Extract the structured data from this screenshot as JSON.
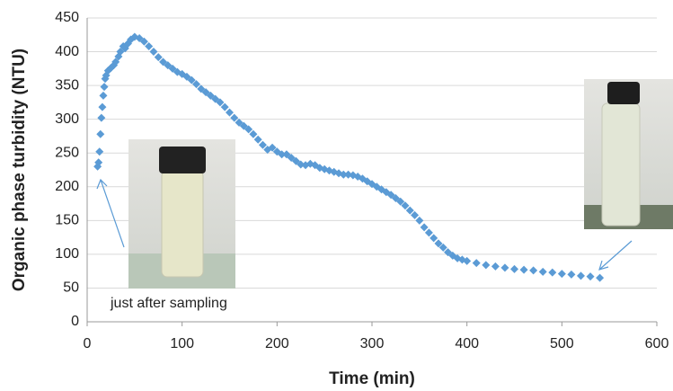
{
  "chart_data": {
    "type": "scatter",
    "x_label": "Time (min)",
    "y_label": "Organic phase turbidity (NTU)",
    "annotation": "just after sampling",
    "xlim": [
      0,
      600
    ],
    "xticks": [
      0,
      100,
      200,
      300,
      400,
      500,
      600
    ],
    "ylim": [
      0,
      450
    ],
    "yticks": [
      0,
      50,
      100,
      150,
      200,
      250,
      300,
      350,
      400,
      450
    ],
    "grid": true,
    "x": [
      11,
      12,
      13,
      14,
      15,
      16,
      17,
      18,
      19,
      20,
      22,
      25,
      28,
      30,
      33,
      35,
      38,
      40,
      43,
      46,
      50,
      55,
      60,
      65,
      70,
      75,
      80,
      85,
      90,
      95,
      100,
      105,
      110,
      115,
      120,
      125,
      130,
      135,
      140,
      145,
      150,
      155,
      160,
      165,
      170,
      175,
      180,
      185,
      190,
      195,
      200,
      205,
      210,
      215,
      220,
      225,
      230,
      235,
      240,
      245,
      250,
      255,
      260,
      265,
      270,
      275,
      280,
      285,
      290,
      295,
      300,
      305,
      310,
      315,
      320,
      325,
      330,
      335,
      340,
      345,
      350,
      355,
      360,
      365,
      370,
      375,
      380,
      385,
      390,
      395,
      400,
      410,
      420,
      430,
      440,
      450,
      460,
      470,
      480,
      490,
      500,
      510,
      520,
      530,
      540
    ],
    "series": [
      {
        "color": "#5b9bd5",
        "values": [
          230,
          236,
          252,
          278,
          302,
          318,
          335,
          348,
          360,
          365,
          372,
          376,
          380,
          385,
          393,
          400,
          408,
          405,
          412,
          418,
          422,
          420,
          415,
          408,
          400,
          392,
          385,
          380,
          375,
          370,
          367,
          363,
          358,
          352,
          345,
          340,
          335,
          330,
          325,
          318,
          310,
          302,
          295,
          290,
          285,
          278,
          270,
          262,
          255,
          258,
          252,
          248,
          248,
          243,
          238,
          233,
          232,
          234,
          232,
          228,
          226,
          224,
          222,
          220,
          218,
          218,
          217,
          215,
          212,
          208,
          204,
          200,
          196,
          192,
          188,
          183,
          178,
          172,
          165,
          158,
          150,
          140,
          132,
          124,
          116,
          110,
          103,
          98,
          94,
          92,
          90,
          87,
          84,
          82,
          80,
          78,
          77,
          76,
          74,
          73,
          71,
          70,
          68,
          67,
          65
        ]
      }
    ]
  }
}
